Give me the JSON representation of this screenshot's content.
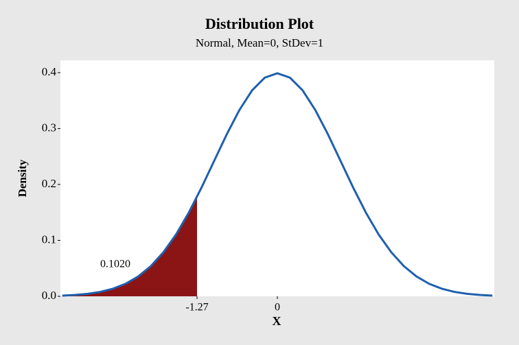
{
  "chart_data": {
    "type": "distribution",
    "title": "Distribution Plot",
    "subtitle": "Normal, Mean=0, StDev=1",
    "x_label": "X",
    "y_label": "Density",
    "xlim": [
      -3.43,
      3.43
    ],
    "ylim": [
      0,
      0.422
    ],
    "xticks": [
      -1.27,
      0
    ],
    "yticks": [
      {
        "value": 0,
        "label": "0.0"
      },
      0.1,
      0.2,
      0.3,
      0.4
    ],
    "series": [
      {
        "color": "#1f5fad",
        "x": [
          -3.4,
          -3.2,
          -3.0,
          -2.8,
          -2.6,
          -2.4,
          -2.2,
          -2.0,
          -1.8,
          -1.6,
          -1.4,
          -1.2,
          -1.0,
          -0.8,
          -0.6,
          -0.4,
          -0.2,
          0,
          0.2,
          0.4,
          0.6,
          0.8,
          1.0,
          1.2,
          1.4,
          1.6,
          1.8,
          2.0,
          2.2,
          2.4,
          2.6,
          2.8,
          3.0,
          3.2,
          3.4
        ],
        "values": [
          0.0012,
          0.0024,
          0.0044,
          0.0079,
          0.0136,
          0.0224,
          0.0355,
          0.054,
          0.079,
          0.1109,
          0.1497,
          0.1942,
          0.242,
          0.2897,
          0.3332,
          0.3683,
          0.391,
          0.3989,
          0.391,
          0.3683,
          0.3332,
          0.2897,
          0.242,
          0.1942,
          0.1497,
          0.1109,
          0.079,
          0.054,
          0.0355,
          0.0224,
          0.0136,
          0.0079,
          0.0044,
          0.0024,
          0.0012
        ]
      }
    ],
    "shaded_region": {
      "color": "#8b1414",
      "x": [
        -3.4,
        -3.2,
        -3.0,
        -2.8,
        -2.6,
        -2.4,
        -2.2,
        -2.0,
        -1.8,
        -1.6,
        -1.4,
        -1.27
      ],
      "values": [
        0.0012,
        0.0024,
        0.0044,
        0.0079,
        0.0136,
        0.0224,
        0.0355,
        0.054,
        0.079,
        0.1109,
        0.1497,
        0.1781
      ],
      "probability": 0.102,
      "probability_label": "0.1020"
    }
  }
}
